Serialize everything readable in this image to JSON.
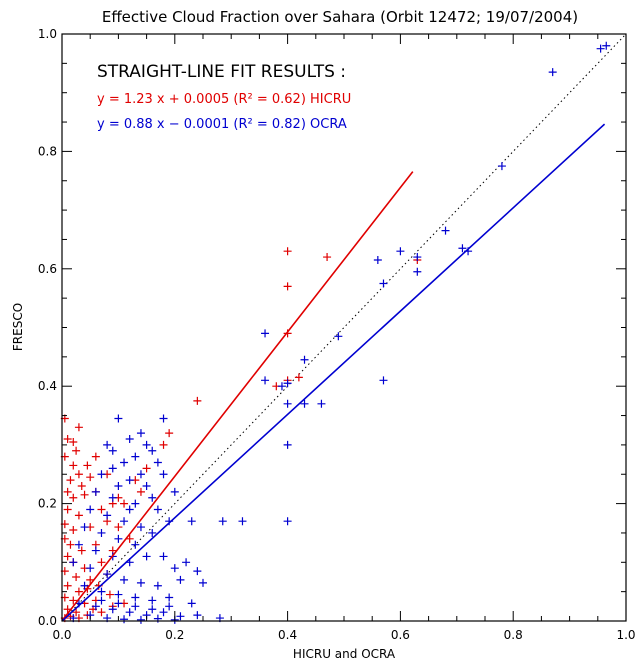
{
  "chart_data": {
    "type": "scatter",
    "title": "Effective Cloud Fraction over Sahara (Orbit 12472; 19/07/2004)",
    "xlabel": "HICRU and OCRA",
    "ylabel": "FRESCO",
    "xlim": [
      0,
      1
    ],
    "ylim": [
      0,
      1
    ],
    "x_ticks": [
      "0.0",
      "0.2",
      "0.4",
      "0.6",
      "0.8",
      "1.0"
    ],
    "y_ticks": [
      "0.0",
      "0.2",
      "0.4",
      "0.6",
      "0.8",
      "1.0"
    ],
    "grid": false,
    "reference_line": {
      "style": "dotted",
      "slope": 1,
      "intercept": 0
    },
    "fit_results_title": "STRAIGHT-LINE FIT RESULTS :",
    "series": [
      {
        "name": "HICRU",
        "color": "#e00000",
        "marker": "plus",
        "fit": {
          "slope": 1.23,
          "intercept": 0.0005,
          "r2": 0.62,
          "x_range": [
            0,
            0.622
          ]
        },
        "fit_label": "y =  1.23 x + 0.0005 (R² = 0.62) HICRU",
        "points": [
          [
            0.4,
            0.63
          ],
          [
            0.4,
            0.57
          ],
          [
            0.47,
            0.62
          ],
          [
            0.63,
            0.615
          ],
          [
            0.4,
            0.49
          ],
          [
            0.38,
            0.4
          ],
          [
            0.4,
            0.41
          ],
          [
            0.42,
            0.415
          ],
          [
            0.24,
            0.375
          ],
          [
            0.005,
            0.345
          ],
          [
            0.01,
            0.31
          ],
          [
            0.02,
            0.305
          ],
          [
            0.005,
            0.28
          ],
          [
            0.03,
            0.25
          ],
          [
            0.015,
            0.24
          ],
          [
            0.05,
            0.245
          ],
          [
            0.01,
            0.22
          ],
          [
            0.02,
            0.21
          ],
          [
            0.04,
            0.215
          ],
          [
            0.06,
            0.22
          ],
          [
            0.01,
            0.19
          ],
          [
            0.03,
            0.18
          ],
          [
            0.07,
            0.19
          ],
          [
            0.09,
            0.2
          ],
          [
            0.005,
            0.165
          ],
          [
            0.02,
            0.155
          ],
          [
            0.05,
            0.16
          ],
          [
            0.08,
            0.17
          ],
          [
            0.11,
            0.2
          ],
          [
            0.14,
            0.22
          ],
          [
            0.005,
            0.14
          ],
          [
            0.015,
            0.13
          ],
          [
            0.035,
            0.12
          ],
          [
            0.06,
            0.13
          ],
          [
            0.1,
            0.16
          ],
          [
            0.13,
            0.24
          ],
          [
            0.15,
            0.26
          ],
          [
            0.18,
            0.3
          ],
          [
            0.19,
            0.32
          ],
          [
            0.01,
            0.11
          ],
          [
            0.02,
            0.1
          ],
          [
            0.04,
            0.09
          ],
          [
            0.07,
            0.1
          ],
          [
            0.09,
            0.12
          ],
          [
            0.12,
            0.14
          ],
          [
            0.005,
            0.085
          ],
          [
            0.025,
            0.075
          ],
          [
            0.05,
            0.07
          ],
          [
            0.08,
            0.08
          ],
          [
            0.01,
            0.06
          ],
          [
            0.03,
            0.05
          ],
          [
            0.045,
            0.055
          ],
          [
            0.065,
            0.06
          ],
          [
            0.005,
            0.04
          ],
          [
            0.02,
            0.035
          ],
          [
            0.04,
            0.03
          ],
          [
            0.06,
            0.035
          ],
          [
            0.085,
            0.045
          ],
          [
            0.01,
            0.02
          ],
          [
            0.025,
            0.015
          ],
          [
            0.045,
            0.01
          ],
          [
            0.005,
            0.005
          ],
          [
            0.015,
            0.008
          ],
          [
            0.03,
            0.005
          ],
          [
            0.055,
            0.02
          ],
          [
            0.07,
            0.015
          ],
          [
            0.09,
            0.025
          ],
          [
            0.11,
            0.03
          ],
          [
            0.025,
            0.29
          ],
          [
            0.03,
            0.33
          ],
          [
            0.045,
            0.265
          ],
          [
            0.06,
            0.28
          ],
          [
            0.02,
            0.265
          ],
          [
            0.035,
            0.23
          ],
          [
            0.08,
            0.25
          ],
          [
            0.1,
            0.21
          ]
        ]
      },
      {
        "name": "OCRA",
        "color": "#0000d0",
        "marker": "plus",
        "fit": {
          "slope": 0.88,
          "intercept": -0.0001,
          "r2": 0.82,
          "x_range": [
            0,
            0.962
          ]
        },
        "fit_label": "y =  0.88 x − 0.0001 (R² = 0.82) OCRA",
        "points": [
          [
            0.955,
            0.975
          ],
          [
            0.965,
            0.98
          ],
          [
            0.87,
            0.935
          ],
          [
            0.78,
            0.775
          ],
          [
            0.68,
            0.665
          ],
          [
            0.71,
            0.635
          ],
          [
            0.72,
            0.63
          ],
          [
            0.6,
            0.63
          ],
          [
            0.56,
            0.615
          ],
          [
            0.63,
            0.62
          ],
          [
            0.63,
            0.595
          ],
          [
            0.57,
            0.575
          ],
          [
            0.36,
            0.49
          ],
          [
            0.49,
            0.485
          ],
          [
            0.43,
            0.445
          ],
          [
            0.36,
            0.41
          ],
          [
            0.57,
            0.41
          ],
          [
            0.4,
            0.405
          ],
          [
            0.39,
            0.4
          ],
          [
            0.4,
            0.37
          ],
          [
            0.43,
            0.37
          ],
          [
            0.46,
            0.37
          ],
          [
            0.4,
            0.3
          ],
          [
            0.4,
            0.17
          ],
          [
            0.285,
            0.17
          ],
          [
            0.32,
            0.17
          ],
          [
            0.23,
            0.17
          ],
          [
            0.1,
            0.345
          ],
          [
            0.14,
            0.32
          ],
          [
            0.15,
            0.3
          ],
          [
            0.12,
            0.31
          ],
          [
            0.08,
            0.3
          ],
          [
            0.18,
            0.345
          ],
          [
            0.16,
            0.29
          ],
          [
            0.17,
            0.27
          ],
          [
            0.13,
            0.28
          ],
          [
            0.11,
            0.27
          ],
          [
            0.09,
            0.26
          ],
          [
            0.07,
            0.25
          ],
          [
            0.12,
            0.24
          ],
          [
            0.15,
            0.23
          ],
          [
            0.18,
            0.25
          ],
          [
            0.2,
            0.22
          ],
          [
            0.06,
            0.22
          ],
          [
            0.09,
            0.21
          ],
          [
            0.13,
            0.2
          ],
          [
            0.17,
            0.19
          ],
          [
            0.05,
            0.19
          ],
          [
            0.08,
            0.18
          ],
          [
            0.11,
            0.17
          ],
          [
            0.14,
            0.16
          ],
          [
            0.16,
            0.15
          ],
          [
            0.04,
            0.16
          ],
          [
            0.07,
            0.15
          ],
          [
            0.1,
            0.14
          ],
          [
            0.13,
            0.13
          ],
          [
            0.15,
            0.11
          ],
          [
            0.03,
            0.13
          ],
          [
            0.06,
            0.12
          ],
          [
            0.09,
            0.11
          ],
          [
            0.12,
            0.1
          ],
          [
            0.18,
            0.11
          ],
          [
            0.2,
            0.09
          ],
          [
            0.22,
            0.1
          ],
          [
            0.24,
            0.085
          ],
          [
            0.02,
            0.1
          ],
          [
            0.05,
            0.09
          ],
          [
            0.08,
            0.08
          ],
          [
            0.11,
            0.07
          ],
          [
            0.14,
            0.065
          ],
          [
            0.17,
            0.06
          ],
          [
            0.21,
            0.07
          ],
          [
            0.25,
            0.065
          ],
          [
            0.04,
            0.06
          ],
          [
            0.07,
            0.05
          ],
          [
            0.1,
            0.045
          ],
          [
            0.13,
            0.04
          ],
          [
            0.16,
            0.035
          ],
          [
            0.19,
            0.04
          ],
          [
            0.23,
            0.03
          ],
          [
            0.03,
            0.03
          ],
          [
            0.06,
            0.025
          ],
          [
            0.09,
            0.02
          ],
          [
            0.12,
            0.015
          ],
          [
            0.15,
            0.01
          ],
          [
            0.18,
            0.015
          ],
          [
            0.21,
            0.008
          ],
          [
            0.24,
            0.01
          ],
          [
            0.28,
            0.005
          ],
          [
            0.05,
            0.01
          ],
          [
            0.08,
            0.005
          ],
          [
            0.11,
            0.003
          ],
          [
            0.14,
            0.002
          ],
          [
            0.17,
            0.004
          ],
          [
            0.2,
            0.002
          ],
          [
            0.02,
            0.005
          ],
          [
            0.07,
            0.035
          ],
          [
            0.1,
            0.03
          ],
          [
            0.13,
            0.025
          ],
          [
            0.16,
            0.02
          ],
          [
            0.19,
            0.025
          ],
          [
            0.12,
            0.19
          ],
          [
            0.1,
            0.23
          ],
          [
            0.14,
            0.25
          ],
          [
            0.16,
            0.21
          ],
          [
            0.09,
            0.29
          ],
          [
            0.19,
            0.17
          ]
        ]
      }
    ]
  }
}
